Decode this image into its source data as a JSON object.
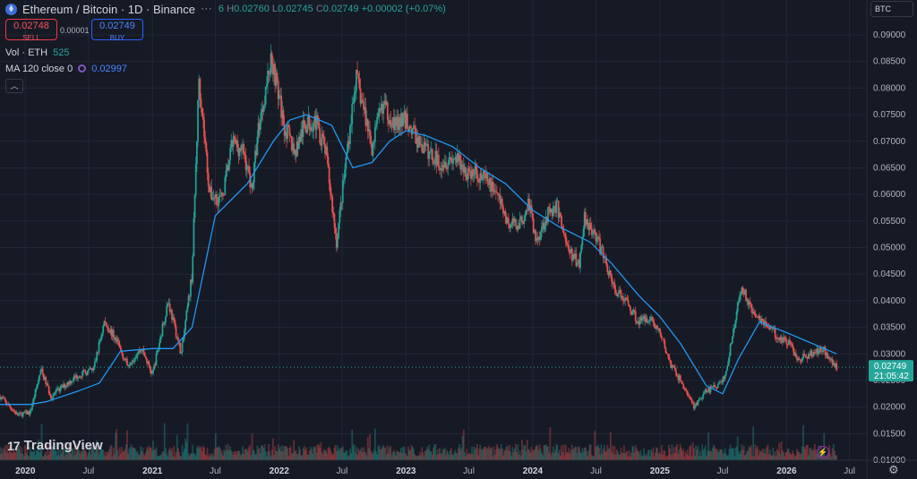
{
  "header": {
    "symbol": "Ethereum / Bitcoin · 1D · Binance",
    "ohlc": {
      "o_partial": "6",
      "h_label": "H",
      "h": "0.02760",
      "l_label": "L",
      "l": "0.02745",
      "c_label": "C",
      "c": "0.02749",
      "change": "+0.00002 (+0.07%)"
    }
  },
  "trade": {
    "sell_price": "0.02748",
    "sell_label": "SELL",
    "spread": "0.00001",
    "buy_price": "0.02749",
    "buy_label": "BUY"
  },
  "indicators": {
    "vol_label": "Vol · ETH",
    "vol_value": "525",
    "ma_label": "MA 120 close 0",
    "ma_value": "0.02997"
  },
  "currency": "BTC",
  "price_tag": {
    "price": "0.02749",
    "countdown": "21:05:42"
  },
  "branding": "TradingView",
  "icons": {
    "coin": "ethereum-icon",
    "collapse": "chevron-up-icon",
    "flash": "lightning-icon",
    "settings": "gear-icon"
  },
  "colors": {
    "background": "#161a25",
    "up": "#26a69a",
    "down": "#ef5350",
    "ma": "#2196f3",
    "price_tag": "#26a69a"
  },
  "chart_data": {
    "type": "candlestick",
    "x_tick_labels": [
      "2020",
      "Jul",
      "2021",
      "Jul",
      "2022",
      "Jul",
      "2023",
      "Jul",
      "2024",
      "Jul",
      "2025",
      "Jul",
      "2026",
      "Jul"
    ],
    "x_tick_dates": [
      "2020-01-01",
      "2020-07-01",
      "2021-01-01",
      "2021-07-01",
      "2022-01-01",
      "2022-07-01",
      "2023-01-01",
      "2023-07-01",
      "2024-01-01",
      "2024-07-01",
      "2025-01-01",
      "2025-07-01",
      "2026-01-01",
      "2026-07-01"
    ],
    "y_tick_labels": [
      "0.01000",
      "0.01500",
      "0.02000",
      "0.02500",
      "0.03000",
      "0.03500",
      "0.04000",
      "0.04500",
      "0.05000",
      "0.05500",
      "0.06000",
      "0.06500",
      "0.07000",
      "0.07500",
      "0.08000",
      "0.08500",
      "0.09000"
    ],
    "ylim": [
      0.01,
      0.092
    ],
    "xlim": [
      "2019-10-20",
      "2026-08-20"
    ],
    "price_path": [
      [
        "2019-10-20",
        0.022
      ],
      [
        "2019-12-10",
        0.0185
      ],
      [
        "2020-01-15",
        0.019
      ],
      [
        "2020-02-15",
        0.027
      ],
      [
        "2020-03-15",
        0.022
      ],
      [
        "2020-05-01",
        0.0245
      ],
      [
        "2020-06-01",
        0.026
      ],
      [
        "2020-07-15",
        0.027
      ],
      [
        "2020-08-15",
        0.036
      ],
      [
        "2020-09-15",
        0.033
      ],
      [
        "2020-10-20",
        0.028
      ],
      [
        "2020-12-01",
        0.031
      ],
      [
        "2021-01-01",
        0.026
      ],
      [
        "2021-02-15",
        0.04
      ],
      [
        "2021-03-25",
        0.03
      ],
      [
        "2021-04-25",
        0.045
      ],
      [
        "2021-05-15",
        0.082
      ],
      [
        "2021-06-15",
        0.06
      ],
      [
        "2021-07-20",
        0.059
      ],
      [
        "2021-08-20",
        0.07
      ],
      [
        "2021-09-20",
        0.068
      ],
      [
        "2021-10-15",
        0.061
      ],
      [
        "2021-11-01",
        0.072
      ],
      [
        "2021-12-10",
        0.086
      ],
      [
        "2022-01-15",
        0.073
      ],
      [
        "2022-02-15",
        0.068
      ],
      [
        "2022-03-15",
        0.073
      ],
      [
        "2022-04-15",
        0.074
      ],
      [
        "2022-05-15",
        0.068
      ],
      [
        "2022-06-15",
        0.051
      ],
      [
        "2022-07-15",
        0.068
      ],
      [
        "2022-08-10",
        0.082
      ],
      [
        "2022-09-05",
        0.075
      ],
      [
        "2022-09-25",
        0.069
      ],
      [
        "2022-10-25",
        0.077
      ],
      [
        "2022-12-01",
        0.073
      ],
      [
        "2023-01-01",
        0.074
      ],
      [
        "2023-02-15",
        0.069
      ],
      [
        "2023-04-10",
        0.066
      ],
      [
        "2023-05-20",
        0.067
      ],
      [
        "2023-06-25",
        0.064
      ],
      [
        "2023-07-25",
        0.064
      ],
      [
        "2023-09-15",
        0.061
      ],
      [
        "2023-10-25",
        0.054
      ],
      [
        "2023-12-01",
        0.055
      ],
      [
        "2023-12-20",
        0.059
      ],
      [
        "2024-01-10",
        0.051
      ],
      [
        "2024-02-10",
        0.056
      ],
      [
        "2024-03-10",
        0.058
      ],
      [
        "2024-04-15",
        0.049
      ],
      [
        "2024-05-15",
        0.047
      ],
      [
        "2024-05-28",
        0.056
      ],
      [
        "2024-06-25",
        0.053
      ],
      [
        "2024-07-25",
        0.048
      ],
      [
        "2024-08-25",
        0.042
      ],
      [
        "2024-09-25",
        0.04
      ],
      [
        "2024-11-01",
        0.036
      ],
      [
        "2024-12-01",
        0.037
      ],
      [
        "2025-01-01",
        0.034
      ],
      [
        "2025-02-01",
        0.028
      ],
      [
        "2025-03-01",
        0.025
      ],
      [
        "2025-04-10",
        0.02
      ],
      [
        "2025-05-15",
        0.023
      ],
      [
        "2025-06-15",
        0.024
      ],
      [
        "2025-07-10",
        0.026
      ],
      [
        "2025-07-25",
        0.032
      ],
      [
        "2025-08-25",
        0.043
      ],
      [
        "2025-09-15",
        0.039
      ],
      [
        "2025-10-15",
        0.037
      ],
      [
        "2025-11-10",
        0.035
      ],
      [
        "2025-12-10",
        0.033
      ],
      [
        "2026-01-10",
        0.032
      ],
      [
        "2026-02-01",
        0.029
      ],
      [
        "2026-03-15",
        0.03
      ],
      [
        "2026-04-15",
        0.031
      ],
      [
        "2026-05-25",
        0.0275
      ]
    ],
    "ma_path": [
      [
        "2019-10-20",
        0.0205
      ],
      [
        "2020-01-15",
        0.0205
      ],
      [
        "2020-03-01",
        0.021
      ],
      [
        "2020-06-01",
        0.023
      ],
      [
        "2020-08-01",
        0.0245
      ],
      [
        "2020-10-01",
        0.0305
      ],
      [
        "2021-01-01",
        0.031
      ],
      [
        "2021-03-01",
        0.031
      ],
      [
        "2021-04-25",
        0.035
      ],
      [
        "2021-07-01",
        0.056
      ],
      [
        "2021-10-01",
        0.062
      ],
      [
        "2021-12-15",
        0.07
      ],
      [
        "2022-02-01",
        0.074
      ],
      [
        "2022-03-20",
        0.075
      ],
      [
        "2022-06-01",
        0.073
      ],
      [
        "2022-08-01",
        0.065
      ],
      [
        "2022-09-25",
        0.066
      ],
      [
        "2022-11-15",
        0.07
      ],
      [
        "2023-01-01",
        0.072
      ],
      [
        "2023-03-01",
        0.071
      ],
      [
        "2023-05-15",
        0.069
      ],
      [
        "2023-08-01",
        0.065
      ],
      [
        "2023-10-15",
        0.062
      ],
      [
        "2024-01-01",
        0.057
      ],
      [
        "2024-03-15",
        0.054
      ],
      [
        "2024-06-15",
        0.051
      ],
      [
        "2024-08-15",
        0.047
      ],
      [
        "2024-11-01",
        0.041
      ],
      [
        "2025-01-01",
        0.037
      ],
      [
        "2025-03-01",
        0.032
      ],
      [
        "2025-05-15",
        0.024
      ],
      [
        "2025-07-01",
        0.0225
      ],
      [
        "2025-08-15",
        0.029
      ],
      [
        "2025-10-15",
        0.036
      ],
      [
        "2026-01-01",
        0.034
      ],
      [
        "2026-04-01",
        0.0315
      ],
      [
        "2026-05-25",
        0.03
      ]
    ],
    "last_price": 0.02749,
    "grid": true,
    "legend": "top-left"
  }
}
